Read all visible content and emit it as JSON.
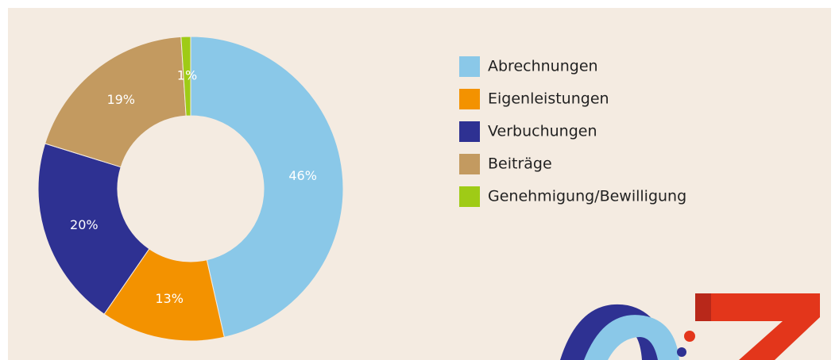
{
  "chart_data": {
    "type": "donut",
    "categories": [
      "Abrechnungen",
      "Eigenleistungen",
      "Verbuchungen",
      "Beiträge",
      "Genehmigung/Bewilligung"
    ],
    "values": [
      46,
      13,
      20,
      19,
      1
    ],
    "value_labels": [
      "46%",
      "13%",
      "20%",
      "19%",
      "1%"
    ],
    "colors": [
      "#8ac8e8",
      "#f39200",
      "#2e3192",
      "#c39a60",
      "#9fcb16"
    ],
    "legend": "right"
  }
}
